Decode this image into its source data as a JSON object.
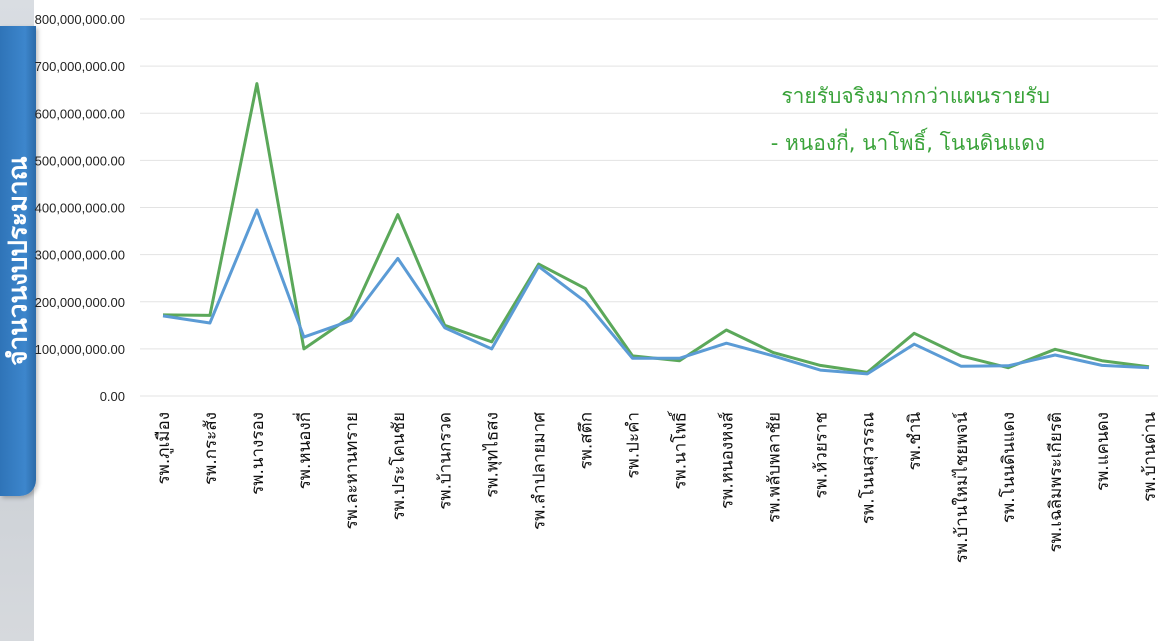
{
  "chart_data": {
    "type": "line",
    "title": "",
    "xlabel": "",
    "ylabel": "จำนวนงบประมาณ",
    "ylim": [
      0,
      800000000
    ],
    "y_ticks": [
      "0.00",
      "100,000,000.00",
      "200,000,000.00",
      "300,000,000.00",
      "400,000,000.00",
      "500,000,000.00",
      "600,000,000.00",
      "700,000,000.00",
      "800,000,000.00"
    ],
    "categories": [
      "รพ.ภูเมือง",
      "รพ.กระสัง",
      "รพ.นางรอง",
      "รพ.หนองกี่",
      "รพ.ละหานทราย",
      "รพ.ประโคนชัย",
      "รพ.บ้านกรวด",
      "รพ.พุทไธสง",
      "รพ.ลำปลายมาศ",
      "รพ.สตึก",
      "รพ.ปะคำ",
      "รพ.นาโพธิ์",
      "รพ.หนองหงส์",
      "รพ.พลับพลาชัย",
      "รพ.ห้วยราช",
      "รพ.โนนสุวรรณ",
      "รพ.ชำนิ",
      "รพ.บ้านใหม่ไชยพจน์",
      "รพ.โนนดินแดง",
      "รพ.เฉลิมพระเกียรติ",
      "รพ.แคนดง",
      "รพ.บ้านด่าน"
    ],
    "series": [
      {
        "color": "#5ba85a",
        "values": [
          172000000,
          171000000,
          663000000,
          100000000,
          168000000,
          385000000,
          150000000,
          115000000,
          280000000,
          228000000,
          85000000,
          75000000,
          140000000,
          92000000,
          65000000,
          50000000,
          133000000,
          85000000,
          60000000,
          99000000,
          75000000,
          62000000
        ]
      },
      {
        "color": "#5b9bd5",
        "values": [
          170000000,
          155000000,
          395000000,
          125000000,
          160000000,
          292000000,
          145000000,
          100000000,
          275000000,
          200000000,
          80000000,
          80000000,
          112000000,
          85000000,
          55000000,
          47000000,
          110000000,
          63000000,
          64000000,
          87000000,
          65000000,
          60000000
        ]
      }
    ],
    "grid": true,
    "annotations": [
      "รายรับจริงมากกว่าแผนรายรับ",
      "- หนองกี่, นาโพธิ์, โนนดินแดง"
    ]
  }
}
